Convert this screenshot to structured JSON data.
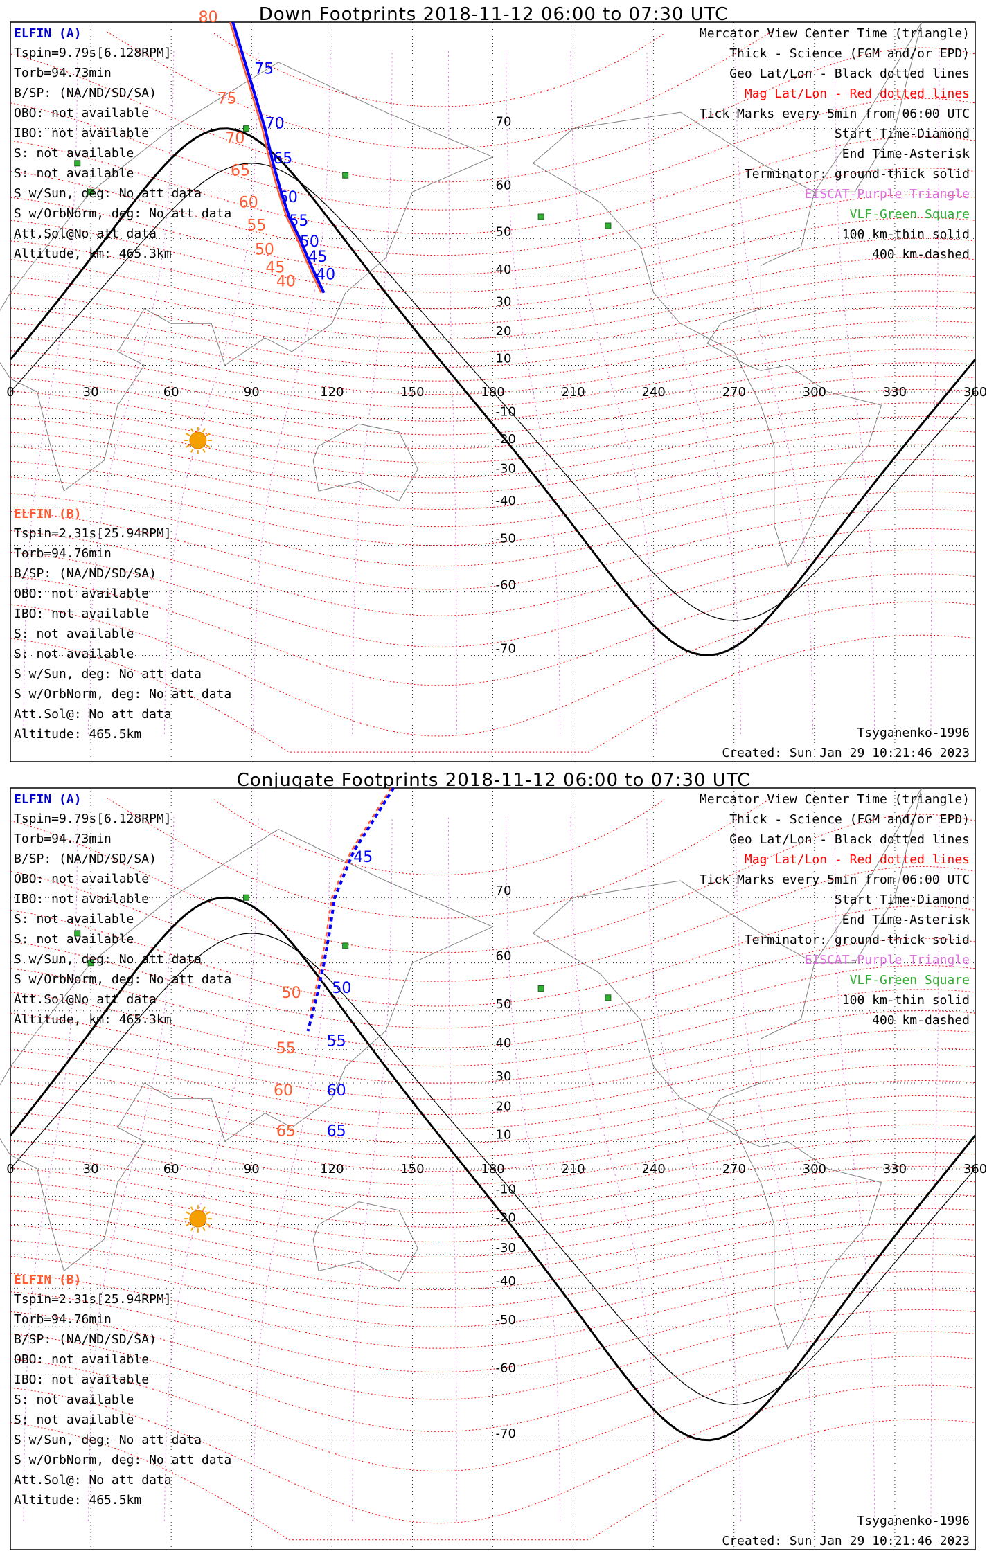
{
  "chart_data": [
    {
      "type": "line",
      "title": "Down Footprints 2018-11-12 06:00 to 07:30 UTC",
      "projection": "Mercator",
      "xlim": [
        0,
        360
      ],
      "ylim": [
        -80,
        80
      ],
      "x_ticks": [
        0,
        30,
        60,
        90,
        120,
        150,
        180,
        210,
        240,
        270,
        300,
        330,
        360
      ],
      "y_ticks": [
        70,
        60,
        50,
        40,
        30,
        20,
        10,
        -10,
        -20,
        -30,
        -40,
        -50,
        -60,
        -70
      ],
      "left_notes_a": {
        "title": "ELFIN (A)",
        "lines": [
          "Tspin=9.79s[6.128RPM]",
          "Torb=94.73min",
          "B/SP: (NA/ND/SD/SA)",
          "OBO: not available",
          "IBO: not available",
          "S: not available",
          "S: not available",
          "S w/Sun, deg: No att data",
          "S w/OrbNorm, deg: No att data",
          "Att.Sol@No att data",
          "Altitude, km: 465.3km"
        ]
      },
      "left_notes_b": {
        "title": "ELFIN (B)",
        "lines": [
          "Tspin=2.31s[25.94RPM]",
          "Torb=94.76min",
          "B/SP: (NA/ND/SD/SA)",
          "OBO: not available",
          "IBO: not available",
          "S: not available",
          "S: not available",
          "S w/Sun, deg: No att data",
          "S w/OrbNorm, deg: No att data",
          "Att.Sol@: No att data",
          "Altitude: 465.5km"
        ]
      },
      "legend": [
        {
          "text": "Mercator View Center Time (triangle)",
          "color": "#000000"
        },
        {
          "text": "Thick - Science (FGM and/or EPD)",
          "color": "#000000"
        },
        {
          "text": "Geo Lat/Lon - Black dotted lines",
          "color": "#000000"
        },
        {
          "text": "Mag Lat/Lon - Red dotted lines",
          "color": "#ff0000"
        },
        {
          "text": "Tick Marks every 5min from 06:00 UTC",
          "color": "#000000"
        },
        {
          "text": "Start Time-Diamond",
          "color": "#000000"
        },
        {
          "text": "End Time-Asterisk",
          "color": "#000000"
        },
        {
          "text": "Terminator: ground-thick solid",
          "color": "#000000"
        },
        {
          "text": "EISCAT-Purple Triangle",
          "color": "#e070e0"
        },
        {
          "text": "VLF-Green Square",
          "color": "#30b030"
        },
        {
          "text": "100 km-thin solid",
          "color": "#000000"
        },
        {
          "text": "400 km-dashed",
          "color": "#000000"
        }
      ],
      "footer_left": "",
      "footer_right_model": "Tsyganenko-1996",
      "footer_right_created": "Created: Sun Jan 29 10:21:46 2023",
      "series": [
        {
          "name": "ELFIN (A)",
          "color": "#0000ff",
          "style": "solid",
          "points": [
            [
              83,
              80
            ],
            [
              90,
              75
            ],
            [
              95,
              70
            ],
            [
              98,
              65
            ],
            [
              101,
              60
            ],
            [
              104,
              55
            ],
            [
              108,
              50
            ],
            [
              111,
              45
            ],
            [
              114,
              40
            ],
            [
              117,
              35
            ]
          ],
          "ticks": [
            {
              "label": "75",
              "lon": 91,
              "lat": 76
            },
            {
              "label": "70",
              "lon": 95,
              "lat": 70
            },
            {
              "label": "65",
              "lon": 98,
              "lat": 65
            },
            {
              "label": "60",
              "lon": 100,
              "lat": 58
            },
            {
              "label": "55",
              "lon": 104,
              "lat": 53
            },
            {
              "label": "50",
              "lon": 108,
              "lat": 48
            },
            {
              "label": "45",
              "lon": 111,
              "lat": 44
            },
            {
              "label": "40",
              "lon": 114,
              "lat": 39
            }
          ]
        },
        {
          "name": "ELFIN (B)",
          "color": "#ff5a30",
          "style": "solid",
          "points": [
            [
              82,
              80
            ],
            [
              89,
              75
            ],
            [
              94,
              70
            ],
            [
              97,
              65
            ],
            [
              100,
              60
            ],
            [
              103,
              55
            ],
            [
              107,
              50
            ],
            [
              110,
              45
            ],
            [
              113,
              40
            ],
            [
              116,
              35
            ]
          ],
          "ticks": [
            {
              "label": "80",
              "lon": 79,
              "lat": 80
            },
            {
              "label": "75",
              "lon": 86,
              "lat": 73
            },
            {
              "label": "70",
              "lon": 89,
              "lat": 68
            },
            {
              "label": "65",
              "lon": 91,
              "lat": 63
            },
            {
              "label": "60",
              "lon": 94,
              "lat": 57
            },
            {
              "label": "55",
              "lon": 97,
              "lat": 52
            },
            {
              "label": "50",
              "lon": 100,
              "lat": 46
            },
            {
              "label": "45",
              "lon": 104,
              "lat": 41
            },
            {
              "label": "40",
              "lon": 108,
              "lat": 37
            }
          ]
        }
      ]
    },
    {
      "type": "line",
      "title": "Conjugate Footprints 2018-11-12 06:00 to 07:30 UTC",
      "projection": "Mercator",
      "xlim": [
        0,
        360
      ],
      "ylim": [
        -80,
        80
      ],
      "x_ticks": [
        0,
        30,
        60,
        90,
        120,
        150,
        180,
        210,
        240,
        270,
        300,
        330,
        360
      ],
      "y_ticks": [
        70,
        60,
        50,
        40,
        30,
        20,
        10,
        -10,
        -20,
        -30,
        -40,
        -50,
        -60,
        -70
      ],
      "left_notes_a": {
        "title": "ELFIN (A)",
        "lines": [
          "Tspin=9.79s[6.128RPM]",
          "Torb=94.73min",
          "B/SP: (NA/ND/SD/SA)",
          "OBO: not available",
          "IBO: not available",
          "S: not available",
          "S: not available",
          "S w/Sun, deg: No att data",
          "S w/OrbNorm, deg: No att data",
          "Att.Sol@No att data",
          "Altitude, km: 465.3km"
        ]
      },
      "left_notes_b": {
        "title": "ELFIN (B)",
        "lines": [
          "Tspin=2.31s[25.94RPM]",
          "Torb=94.76min",
          "B/SP: (NA/ND/SD/SA)",
          "OBO: not available",
          "IBO: not available",
          "S: not available",
          "S: not available",
          "S w/Sun, deg: No att data",
          "S w/OrbNorm, deg: No att data",
          "Att.Sol@: No att data",
          "Altitude: 465.5km"
        ]
      },
      "legend": [
        {
          "text": "Mercator View Center Time (triangle)",
          "color": "#000000"
        },
        {
          "text": "Thick - Science (FGM and/or EPD)",
          "color": "#000000"
        },
        {
          "text": "Geo Lat/Lon - Black dotted lines",
          "color": "#000000"
        },
        {
          "text": "Mag Lat/Lon - Red dotted lines",
          "color": "#ff0000"
        },
        {
          "text": "Tick Marks every 5min from 06:00 UTC",
          "color": "#000000"
        },
        {
          "text": "Start Time-Diamond",
          "color": "#000000"
        },
        {
          "text": "End Time-Asterisk",
          "color": "#000000"
        },
        {
          "text": "Terminator: ground-thick solid",
          "color": "#000000"
        },
        {
          "text": "EISCAT-Purple Triangle",
          "color": "#e070e0"
        },
        {
          "text": "VLF-Green Square",
          "color": "#30b030"
        },
        {
          "text": "100 km-thin solid",
          "color": "#000000"
        },
        {
          "text": "400 km-dashed",
          "color": "#000000"
        }
      ],
      "footer_right_model": "Tsyganenko-1996",
      "footer_right_created": "Created: Sun Jan 29 10:21:46 2023",
      "series": [
        {
          "name": "ELFIN (A)",
          "color": "#0000ff",
          "style": "dashed",
          "points": [
            [
              143,
              80
            ],
            [
              128,
              75
            ],
            [
              121,
              70
            ],
            [
              119,
              65
            ],
            [
              117,
              60
            ],
            [
              115,
              55
            ],
            [
              113,
              50
            ],
            [
              111,
              45
            ]
          ],
          "ticks": [
            {
              "label": "45",
              "lon": 128,
              "lat": 74
            },
            {
              "label": "50",
              "lon": 120,
              "lat": 54
            },
            {
              "label": "55",
              "lon": 118,
              "lat": 41
            },
            {
              "label": "60",
              "lon": 118,
              "lat": 26
            },
            {
              "label": "65",
              "lon": 118,
              "lat": 12
            }
          ]
        },
        {
          "name": "ELFIN (B)",
          "color": "#ff5a30",
          "style": "dashed",
          "points": [
            [
              142,
              80
            ],
            [
              127,
              75
            ],
            [
              120,
              70
            ],
            [
              118,
              65
            ],
            [
              116,
              60
            ],
            [
              114,
              55
            ],
            [
              112,
              50
            ]
          ],
          "ticks": [
            {
              "label": "50",
              "lon": 110,
              "lat": 53
            },
            {
              "label": "55",
              "lon": 108,
              "lat": 39
            },
            {
              "label": "60",
              "lon": 107,
              "lat": 26
            },
            {
              "label": "65",
              "lon": 108,
              "lat": 12
            }
          ]
        }
      ]
    }
  ]
}
